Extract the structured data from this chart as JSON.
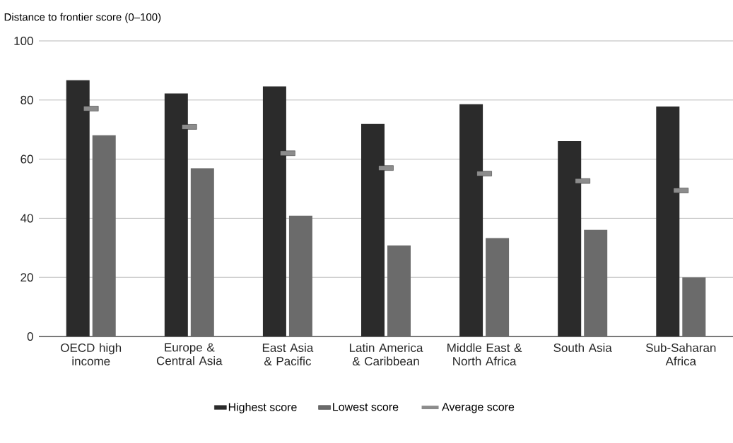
{
  "chart_data": {
    "type": "bar",
    "ylabel": "Distance to frontier score (0–100)",
    "categories": [
      "OECD high income",
      "Europe & Central Asia",
      "East Asia & Pacific",
      "Latin America & Caribbean",
      "Middle East & North Africa",
      "South Asia",
      "Sub-Saharan Africa"
    ],
    "series": [
      {
        "name": "Highest score",
        "color": "#2b2b2b",
        "values": [
          86.7,
          82.2,
          84.6,
          71.9,
          78.6,
          66.1,
          77.8
        ]
      },
      {
        "name": "Lowest score",
        "color": "#6b6b6b",
        "values": [
          68.1,
          56.9,
          40.9,
          30.8,
          33.3,
          36.1,
          20.0
        ]
      },
      {
        "name": "Average score",
        "type": "scatter",
        "color": "#8c8c8c",
        "x": [
          "OECD high income",
          "Europe & Central Asia",
          "East Asia & Pacific",
          "Latin America & Caribbean",
          "Middle East & North Africa",
          "South Asia",
          "Sub-Saharan Africa"
        ],
        "values": [
          77.1,
          70.9,
          62.0,
          57.0,
          55.1,
          52.6,
          49.4
        ]
      }
    ],
    "ylim": [
      0,
      100
    ],
    "yticks": [
      0,
      20,
      40,
      60,
      80,
      100
    ],
    "grid": "y",
    "legend": "bottom"
  }
}
